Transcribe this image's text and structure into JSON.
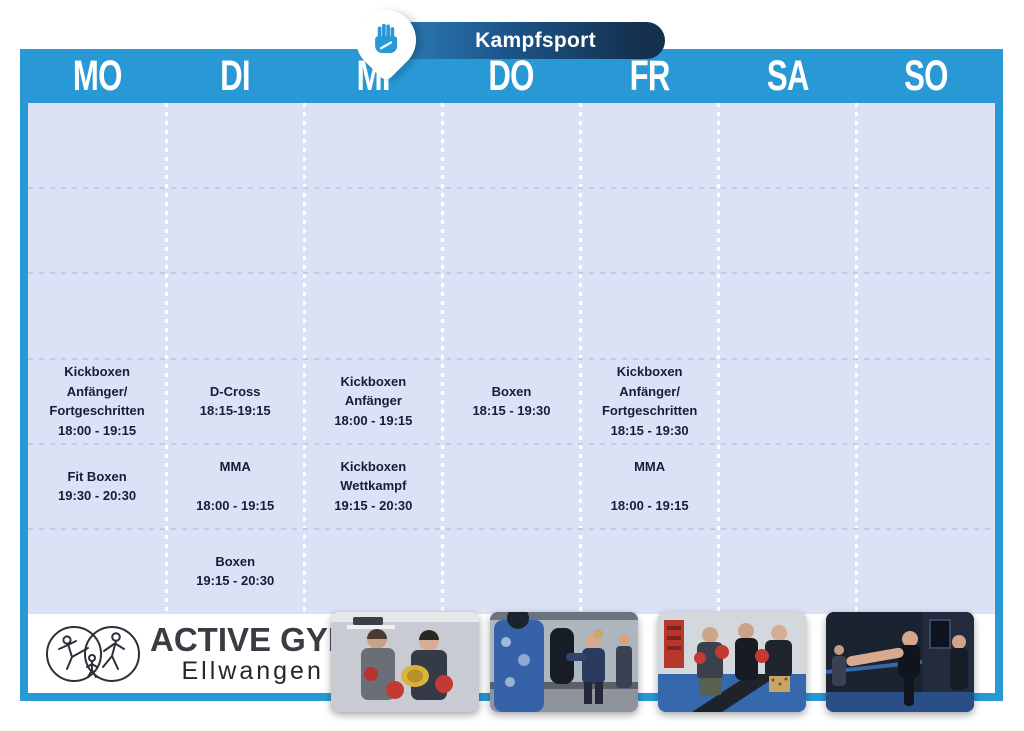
{
  "header": {
    "title": "Kampfsport",
    "badge_icon": "fist-icon"
  },
  "days": [
    "MO",
    "DI",
    "MI",
    "DO",
    "FR",
    "SA",
    "SO"
  ],
  "schedule": {
    "columns": 7,
    "rows": 6,
    "entries": [
      {
        "day": "MO",
        "col": 0,
        "row": 3,
        "text": "Kickboxen\nAnfänger/\nFortgeschritten\n18:00 - 19:15"
      },
      {
        "day": "DI",
        "col": 1,
        "row": 3,
        "text": "D-Cross\n18:15-19:15"
      },
      {
        "day": "MI",
        "col": 2,
        "row": 3,
        "text": "Kickboxen\nAnfänger\n18:00 - 19:15"
      },
      {
        "day": "DO",
        "col": 3,
        "row": 3,
        "text": "Boxen\n18:15 - 19:30"
      },
      {
        "day": "FR",
        "col": 4,
        "row": 3,
        "text": "Kickboxen\nAnfänger/\nFortgeschritten\n18:15 - 19:30"
      },
      {
        "day": "MO",
        "col": 0,
        "row": 4,
        "text": "Fit Boxen\n19:30 - 20:30"
      },
      {
        "day": "DI",
        "col": 1,
        "row": 4,
        "text": "MMA\n\n18:00 - 19:15"
      },
      {
        "day": "MI",
        "col": 2,
        "row": 4,
        "text": "Kickboxen\nWettkampf\n19:15 - 20:30"
      },
      {
        "day": "FR",
        "col": 4,
        "row": 4,
        "text": "MMA\n\n18:00 - 19:15"
      },
      {
        "day": "DI",
        "col": 1,
        "row": 5,
        "text": "Boxen\n19:15 - 20:30"
      }
    ]
  },
  "footer": {
    "logo": {
      "title": "ACTIVE GYM",
      "subtitle": "Ellwangen",
      "mark": "gym-figures-logo"
    },
    "photos": [
      {
        "name": "photo-fighters-with-belt",
        "description": "Two fighters posing with championship belt and red boxing gloves"
      },
      {
        "name": "photo-bag-training",
        "description": "Kickboxing bag training session"
      },
      {
        "name": "photo-sparring-group",
        "description": "Three fighters sparring with red gloves on blue mats"
      },
      {
        "name": "photo-high-kick",
        "description": "Fighter performing a high kick in a dark gym"
      }
    ]
  },
  "colors": {
    "band_blue": "#2999d6",
    "pill_light": "#2f86c2",
    "pill_dark": "#14304e",
    "cell_background": "#dce1f6",
    "cell_text": "#131f38",
    "row_dash": "#b6d0ee",
    "column_dash": "#ffffff",
    "glove_red": "#c23a31"
  }
}
